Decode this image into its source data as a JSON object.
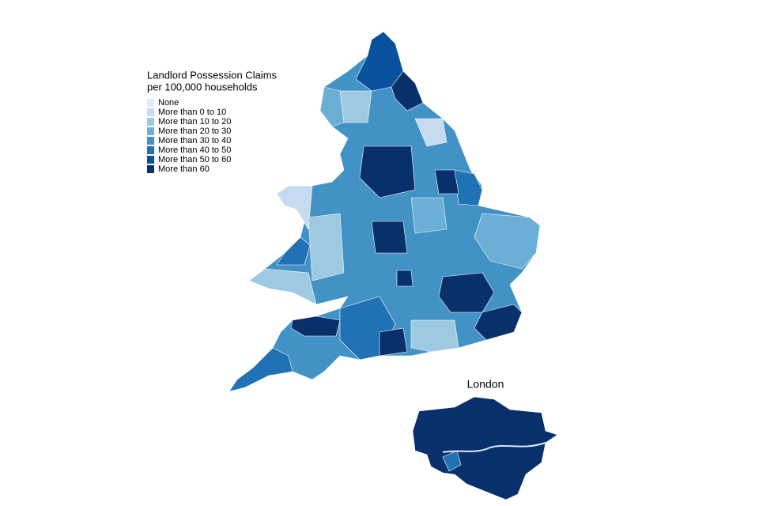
{
  "legend": {
    "title": [
      "Landlord Possession Claims",
      "per 100,000 households"
    ],
    "items": [
      {
        "label": "None",
        "color": "#deebf7"
      },
      {
        "label": "More than 0 to 10",
        "color": "#c6dbef"
      },
      {
        "label": "More than 10 to 20",
        "color": "#9ecae1"
      },
      {
        "label": "More than 20 to 30",
        "color": "#6baed6"
      },
      {
        "label": "More than 30 to 40",
        "color": "#4292c6"
      },
      {
        "label": "More than 40 to 50",
        "color": "#2171b5"
      },
      {
        "label": "More than 50 to 60",
        "color": "#08519c"
      },
      {
        "label": "More than 60",
        "color": "#08306b"
      }
    ]
  },
  "inset": {
    "title": "London"
  }
}
